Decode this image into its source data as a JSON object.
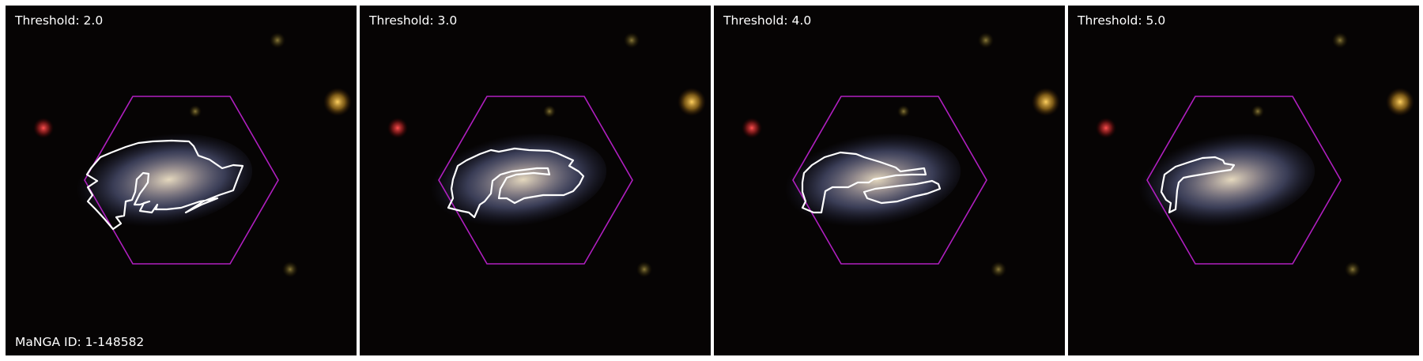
{
  "panels": [
    {
      "threshold_label": "Threshold: 2.0",
      "id_label": "MaNGA ID: 1-148582"
    },
    {
      "threshold_label": "Threshold: 3.0",
      "id_label": ""
    },
    {
      "threshold_label": "Threshold: 4.0",
      "id_label": ""
    },
    {
      "threshold_label": "Threshold: 5.0",
      "id_label": ""
    }
  ],
  "colors": {
    "background": "#060404",
    "hexagon": "#b01fc0",
    "contour": "#ffffff",
    "galaxy_core": "#e8dcc0",
    "galaxy_disk": "#7f88b8"
  }
}
